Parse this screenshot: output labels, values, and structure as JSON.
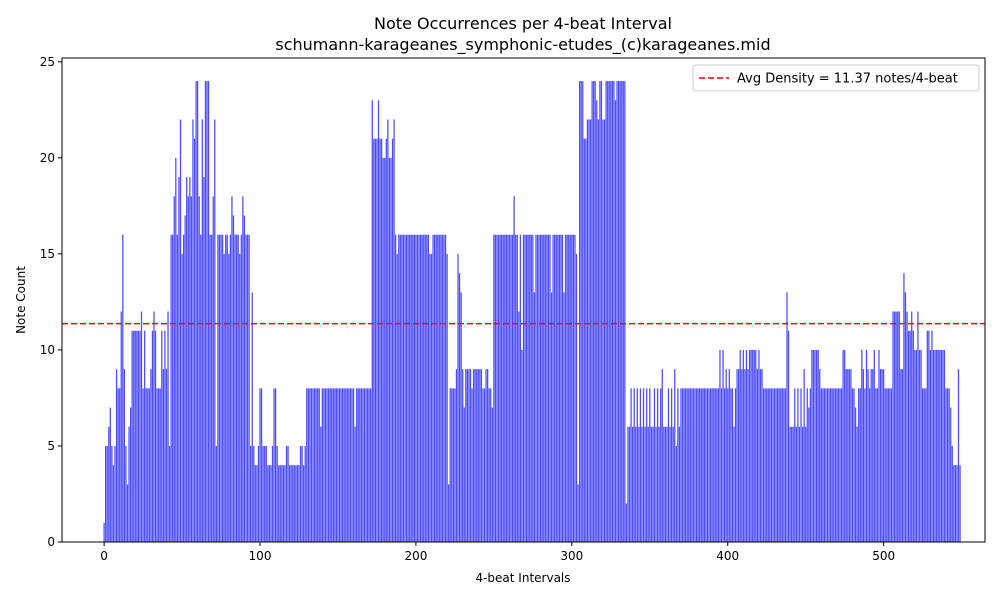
{
  "chart_data": {
    "type": "bar",
    "title": "Note Occurrences per 4-beat Interval",
    "subtitle": "schumann-karageanes_symphonic-etudes_(c)karageanes.mid",
    "xlabel": "4-beat Intervals",
    "ylabel": "Note Count",
    "xlim": [
      -27,
      565
    ],
    "ylim": [
      0,
      25.2
    ],
    "xticks": [
      0,
      100,
      200,
      300,
      400,
      500
    ],
    "yticks": [
      0,
      5,
      10,
      15,
      20,
      25
    ],
    "bar_color": "#4b4bff",
    "avg_line": {
      "value": 11.37,
      "label": "Avg Density = 11.37 notes/4-beat",
      "color": "#ff0000",
      "style": "dashed"
    },
    "legend_placement": "top-right",
    "grid": false,
    "x_start": 0,
    "values": [
      1,
      5,
      5,
      6,
      7,
      5,
      4,
      5,
      9,
      8,
      8,
      12,
      16,
      9,
      5,
      3,
      6,
      7,
      11,
      11,
      11,
      11,
      11,
      11,
      12,
      8,
      11,
      8,
      8,
      8,
      9,
      11,
      12,
      11,
      8,
      8,
      8,
      11,
      9,
      11,
      9,
      12,
      5,
      16,
      16,
      18,
      20,
      16,
      19,
      22,
      15,
      16,
      17,
      19,
      18,
      19,
      18,
      22,
      21,
      24,
      24,
      18,
      16,
      22,
      19,
      24,
      24,
      24,
      16,
      16,
      18,
      22,
      5,
      16,
      16,
      16,
      16,
      15,
      16,
      16,
      15,
      16,
      18,
      17,
      16,
      16,
      16,
      15,
      16,
      18,
      17,
      16,
      16,
      16,
      5,
      13,
      5,
      4,
      4,
      5,
      8,
      8,
      5,
      5,
      5,
      4,
      4,
      4,
      5,
      8,
      8,
      5,
      4,
      4,
      4,
      4,
      4,
      5,
      5,
      4,
      4,
      4,
      4,
      4,
      4,
      4,
      5,
      5,
      4,
      5,
      8,
      8,
      8,
      8,
      8,
      8,
      8,
      8,
      8,
      6,
      8,
      8,
      8,
      8,
      8,
      8,
      8,
      8,
      8,
      8,
      8,
      8,
      8,
      8,
      8,
      8,
      8,
      8,
      8,
      8,
      8,
      6,
      8,
      8,
      8,
      8,
      8,
      8,
      8,
      8,
      8,
      8,
      23,
      21,
      21,
      21,
      23,
      21,
      21,
      20,
      20,
      21,
      22,
      20,
      20,
      21,
      22,
      16,
      15,
      16,
      16,
      16,
      16,
      16,
      16,
      16,
      16,
      16,
      16,
      16,
      16,
      16,
      16,
      16,
      16,
      16,
      16,
      16,
      16,
      15,
      15,
      16,
      16,
      16,
      16,
      16,
      16,
      16,
      16,
      16,
      15,
      3,
      8,
      8,
      8,
      8,
      9,
      15,
      14,
      13,
      9,
      7,
      9,
      9,
      9,
      9,
      8,
      9,
      9,
      9,
      9,
      9,
      9,
      8,
      8,
      9,
      9,
      8,
      8,
      7,
      16,
      16,
      16,
      16,
      16,
      16,
      16,
      16,
      16,
      16,
      16,
      16,
      16,
      18,
      16,
      16,
      12,
      16,
      10,
      16,
      16,
      16,
      16,
      16,
      16,
      16,
      13,
      16,
      16,
      16,
      16,
      16,
      16,
      16,
      16,
      16,
      16,
      13,
      16,
      16,
      16,
      16,
      16,
      16,
      16,
      13,
      16,
      16,
      16,
      16,
      16,
      16,
      16,
      15,
      3,
      24,
      24,
      24,
      21,
      21,
      22,
      22,
      22,
      24,
      24,
      24,
      23,
      22,
      24,
      24,
      22,
      22,
      24,
      24,
      24,
      24,
      24,
      24,
      23,
      24,
      24,
      24,
      24,
      24,
      24,
      2,
      6,
      6,
      8,
      6,
      8,
      6,
      8,
      6,
      8,
      6,
      8,
      6,
      8,
      6,
      8,
      6,
      6,
      8,
      6,
      8,
      6,
      8,
      9,
      6,
      6,
      6,
      8,
      6,
      8,
      6,
      9,
      5,
      8,
      6,
      8,
      8,
      8,
      8,
      8,
      8,
      8,
      8,
      8,
      8,
      8,
      8,
      8,
      8,
      8,
      8,
      8,
      8,
      8,
      8,
      8,
      8,
      8,
      8,
      8,
      10,
      8,
      10,
      8,
      9,
      8,
      9,
      8,
      8,
      6,
      8,
      9,
      9,
      10,
      9,
      10,
      9,
      10,
      9,
      10,
      10,
      10,
      10,
      10,
      9,
      10,
      9,
      9,
      8,
      8,
      8,
      8,
      8,
      8,
      8,
      8,
      8,
      8,
      8,
      8,
      8,
      8,
      8,
      13,
      11,
      6,
      6,
      6,
      8,
      6,
      8,
      6,
      8,
      6,
      9,
      6,
      8,
      7,
      8,
      10,
      10,
      10,
      10,
      10,
      9,
      8,
      8,
      8,
      8,
      8,
      8,
      8,
      8,
      8,
      8,
      8,
      8,
      8,
      8,
      10,
      10,
      9,
      9,
      9,
      9,
      8,
      8,
      7,
      6,
      8,
      8,
      10,
      9,
      8,
      10,
      9,
      8,
      9,
      9,
      10,
      8,
      8,
      10,
      9,
      9,
      9,
      8,
      8,
      8,
      8,
      8,
      12,
      12,
      12,
      12,
      12,
      9,
      9,
      14,
      13,
      12,
      11,
      11,
      12,
      11,
      10,
      10,
      12,
      10,
      10,
      8,
      8,
      8,
      11,
      11,
      10,
      11,
      10,
      10,
      10,
      10,
      10,
      10,
      10,
      10,
      8,
      8,
      8,
      7,
      5,
      4,
      4,
      4,
      9,
      4
    ]
  }
}
